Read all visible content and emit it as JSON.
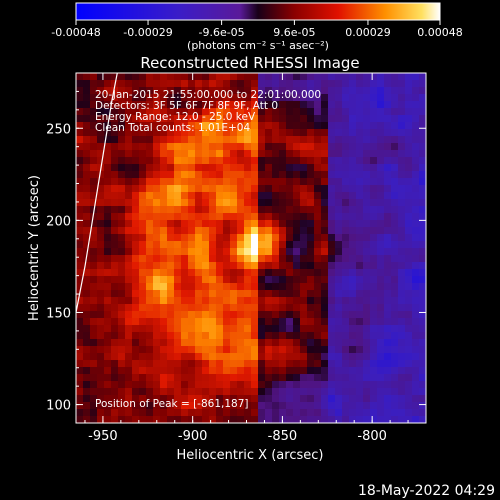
{
  "chart_data": {
    "type": "heatmap",
    "title": "Reconstructed RHESSI Image",
    "xlabel": "Heliocentric X (arcsec)",
    "ylabel": "Heliocentric Y (arcsec)",
    "x_ticks": [
      -950,
      -900,
      -850,
      -800
    ],
    "y_ticks": [
      100,
      150,
      200,
      250
    ],
    "xlim": [
      -965,
      -770
    ],
    "ylim": [
      90,
      280
    ],
    "colorbar": {
      "ticks": [
        "-0.00048",
        "-0.00029",
        "-9.6e-05",
        "9.6e-05",
        "0.00029",
        "0.00048"
      ],
      "range": [
        -0.00048,
        0.00048
      ],
      "units": "(photons cm⁻² s⁻¹ asec⁻²)"
    },
    "annotations": {
      "time": "20-Jan-2015 21:55:00.000 to 22:01:00.000",
      "detectors": "Detectors: 3F 5F 6F 7F 8F 9F, Att 0",
      "energy": "Energy Range: 12.0 - 25.0 keV",
      "clean": "Clean     Total counts: 1.01E+04",
      "peak": "Position of Peak = [-861,187]"
    },
    "peak": {
      "x": -861,
      "y": 187
    },
    "limb_points": [
      [
        -965,
        150
      ],
      [
        -960,
        175
      ],
      [
        -955,
        205
      ],
      [
        -950,
        235
      ],
      [
        -945,
        265
      ],
      [
        -942,
        280
      ]
    ]
  },
  "footer": {
    "date": "18-May-2022 04:29"
  }
}
